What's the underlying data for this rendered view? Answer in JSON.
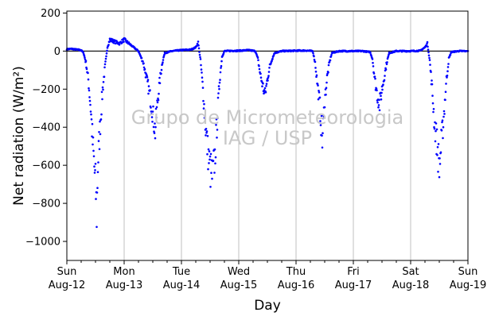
{
  "chart_data": {
    "type": "scatter",
    "xlabel": "Day",
    "ylabel": "Net radiation (W/m²)",
    "ylim": [
      -1100,
      210
    ],
    "yticks": [
      200,
      0,
      -200,
      -400,
      -600,
      -800,
      -1000
    ],
    "ytick_labels": [
      "200",
      "0",
      "−200",
      "−400",
      "−600",
      "−800",
      "−1000"
    ],
    "xlim": [
      "2018-08-12 00:00",
      "2018-08-19 00:00"
    ],
    "xticks": [
      {
        "weekday": "Sun",
        "date": "Aug-12"
      },
      {
        "weekday": "Mon",
        "date": "Aug-13"
      },
      {
        "weekday": "Tue",
        "date": "Aug-14"
      },
      {
        "weekday": "Wed",
        "date": "Aug-15"
      },
      {
        "weekday": "Thu",
        "date": "Aug-16"
      },
      {
        "weekday": "Fri",
        "date": "Aug-17"
      },
      {
        "weekday": "Sat",
        "date": "Aug-18"
      },
      {
        "weekday": "Sun",
        "date": "Aug-19"
      }
    ],
    "grid": "vertical lines at day ticks",
    "zero_line": true,
    "marker_color": "#0000ff",
    "watermark": [
      "Grupo de Micrometeorologia",
      "IAG / USP"
    ],
    "series": [
      {
        "points": [
          [
            "2018-08-12 00:00",
            10
          ],
          [
            "2018-08-12 02:00",
            12
          ],
          [
            "2018-08-12 04:00",
            8
          ],
          [
            "2018-08-12 06:00",
            5
          ],
          [
            "2018-08-12 07:00",
            -10
          ],
          [
            "2018-08-12 08:00",
            -60
          ],
          [
            "2018-08-12 09:00",
            -150
          ],
          [
            "2018-08-12 10:00",
            -300
          ],
          [
            "2018-08-12 11:00",
            -520
          ],
          [
            "2018-08-12 12:00",
            -700
          ],
          [
            "2018-08-12 12:30",
            -850
          ],
          [
            "2018-08-12 13:00",
            -600
          ],
          [
            "2018-08-12 14:00",
            -380
          ],
          [
            "2018-08-12 15:00",
            -200
          ],
          [
            "2018-08-12 16:00",
            -80
          ],
          [
            "2018-08-12 17:00",
            20
          ],
          [
            "2018-08-12 18:00",
            60
          ],
          [
            "2018-08-12 20:00",
            50
          ],
          [
            "2018-08-12 22:00",
            40
          ],
          [
            "2018-08-13 00:00",
            60
          ],
          [
            "2018-08-13 02:00",
            40
          ],
          [
            "2018-08-13 04:00",
            20
          ],
          [
            "2018-08-13 06:00",
            0
          ],
          [
            "2018-08-13 08:00",
            -60
          ],
          [
            "2018-08-13 10:00",
            -180
          ],
          [
            "2018-08-13 11:00",
            -250
          ],
          [
            "2018-08-13 12:00",
            -330
          ],
          [
            "2018-08-13 13:00",
            -420
          ],
          [
            "2018-08-13 14:00",
            -260
          ],
          [
            "2018-08-13 15:00",
            -150
          ],
          [
            "2018-08-13 16:00",
            -60
          ],
          [
            "2018-08-13 17:00",
            -10
          ],
          [
            "2018-08-13 20:00",
            0
          ],
          [
            "2018-08-14 00:00",
            5
          ],
          [
            "2018-08-14 04:00",
            8
          ],
          [
            "2018-08-14 06:00",
            20
          ],
          [
            "2018-08-14 07:00",
            45
          ],
          [
            "2018-08-14 08:00",
            -50
          ],
          [
            "2018-08-14 09:00",
            -200
          ],
          [
            "2018-08-14 10:00",
            -380
          ],
          [
            "2018-08-14 11:00",
            -520
          ],
          [
            "2018-08-14 12:00",
            -620
          ],
          [
            "2018-08-14 13:00",
            -660
          ],
          [
            "2018-08-14 14:00",
            -560
          ],
          [
            "2018-08-14 15:00",
            -360
          ],
          [
            "2018-08-14 16:00",
            -150
          ],
          [
            "2018-08-14 17:00",
            -30
          ],
          [
            "2018-08-14 18:00",
            0
          ],
          [
            "2018-08-14 22:00",
            2
          ],
          [
            "2018-08-15 00:00",
            2
          ],
          [
            "2018-08-15 04:00",
            5
          ],
          [
            "2018-08-15 07:00",
            0
          ],
          [
            "2018-08-15 08:00",
            -40
          ],
          [
            "2018-08-15 09:00",
            -120
          ],
          [
            "2018-08-15 10:00",
            -180
          ],
          [
            "2018-08-15 11:00",
            -230
          ],
          [
            "2018-08-15 12:00",
            -150
          ],
          [
            "2018-08-15 13:00",
            -80
          ],
          [
            "2018-08-15 14:00",
            -40
          ],
          [
            "2018-08-15 15:00",
            -10
          ],
          [
            "2018-08-15 18:00",
            0
          ],
          [
            "2018-08-16 00:00",
            2
          ],
          [
            "2018-08-16 04:00",
            3
          ],
          [
            "2018-08-16 07:00",
            0
          ],
          [
            "2018-08-16 08:00",
            -60
          ],
          [
            "2018-08-16 09:00",
            -180
          ],
          [
            "2018-08-16 10:00",
            -290
          ],
          [
            "2018-08-16 11:00",
            -470
          ],
          [
            "2018-08-16 12:00",
            -260
          ],
          [
            "2018-08-16 13:00",
            -140
          ],
          [
            "2018-08-16 14:00",
            -60
          ],
          [
            "2018-08-16 15:00",
            -10
          ],
          [
            "2018-08-16 18:00",
            0
          ],
          [
            "2018-08-17 00:00",
            0
          ],
          [
            "2018-08-17 04:00",
            0
          ],
          [
            "2018-08-17 07:00",
            -5
          ],
          [
            "2018-08-17 08:00",
            -40
          ],
          [
            "2018-08-17 09:00",
            -150
          ],
          [
            "2018-08-17 10:00",
            -230
          ],
          [
            "2018-08-17 11:00",
            -280
          ],
          [
            "2018-08-17 12:00",
            -200
          ],
          [
            "2018-08-17 13:00",
            -130
          ],
          [
            "2018-08-17 14:00",
            -60
          ],
          [
            "2018-08-17 15:00",
            -10
          ],
          [
            "2018-08-17 18:00",
            0
          ],
          [
            "2018-08-18 00:00",
            0
          ],
          [
            "2018-08-18 04:00",
            2
          ],
          [
            "2018-08-18 06:00",
            20
          ],
          [
            "2018-08-18 07:00",
            40
          ],
          [
            "2018-08-18 08:00",
            -50
          ],
          [
            "2018-08-18 09:00",
            -200
          ],
          [
            "2018-08-18 10:00",
            -380
          ],
          [
            "2018-08-18 11:00",
            -480
          ],
          [
            "2018-08-18 12:00",
            -610
          ],
          [
            "2018-08-18 13:00",
            -470
          ],
          [
            "2018-08-18 14:00",
            -320
          ],
          [
            "2018-08-18 15:00",
            -150
          ],
          [
            "2018-08-18 16:00",
            -40
          ],
          [
            "2018-08-18 17:00",
            -5
          ],
          [
            "2018-08-18 20:00",
            0
          ],
          [
            "2018-08-18 23:00",
            0
          ]
        ]
      }
    ]
  }
}
